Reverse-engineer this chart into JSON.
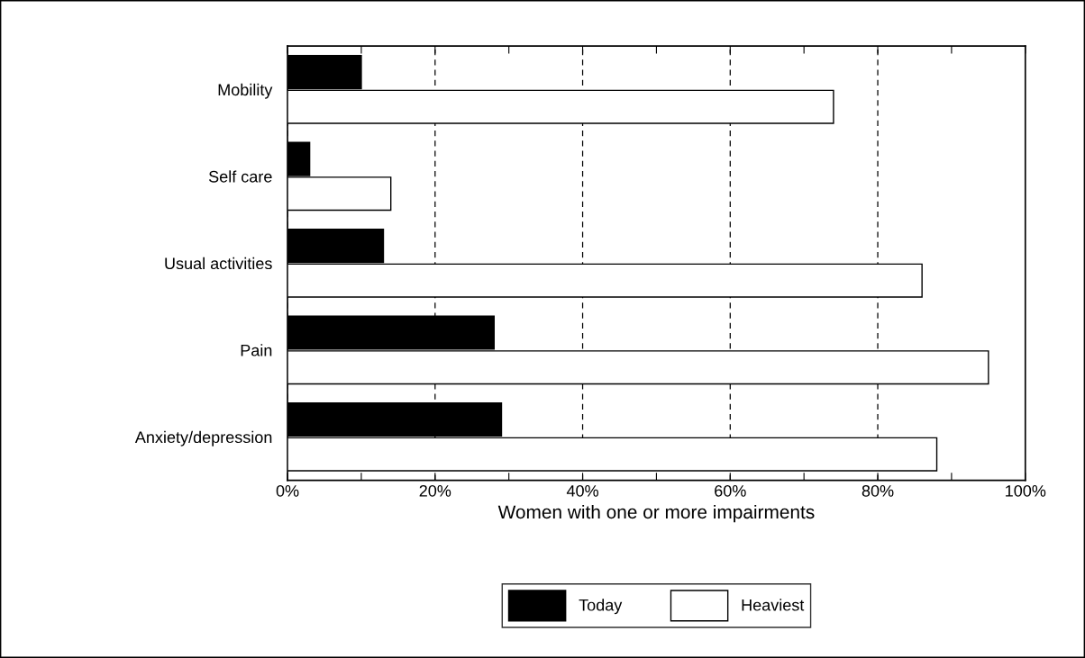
{
  "chart_data": {
    "type": "bar",
    "orientation": "horizontal",
    "xlabel": "Women with one or more impairments",
    "categories": [
      "Mobility",
      "Self care",
      "Usual activities",
      "Pain",
      "Anxiety/depression"
    ],
    "series": [
      {
        "name": "Today",
        "color": "#000000",
        "values": [
          10,
          3,
          13,
          28,
          29
        ]
      },
      {
        "name": "Heaviest",
        "color": "#ffffff",
        "values": [
          74,
          14,
          86,
          95,
          88
        ]
      }
    ],
    "xlim": [
      0,
      100
    ],
    "xticks": [
      {
        "value": 0,
        "label": "0%"
      },
      {
        "value": 10,
        "label": null
      },
      {
        "value": 20,
        "label": "20%"
      },
      {
        "value": 30,
        "label": null
      },
      {
        "value": 40,
        "label": "40%"
      },
      {
        "value": 50,
        "label": null
      },
      {
        "value": 60,
        "label": "60%"
      },
      {
        "value": 70,
        "label": null
      },
      {
        "value": 80,
        "label": "80%"
      },
      {
        "value": 90,
        "label": null
      },
      {
        "value": 100,
        "label": "100%"
      }
    ],
    "grid": "x",
    "legend": "bottom"
  }
}
